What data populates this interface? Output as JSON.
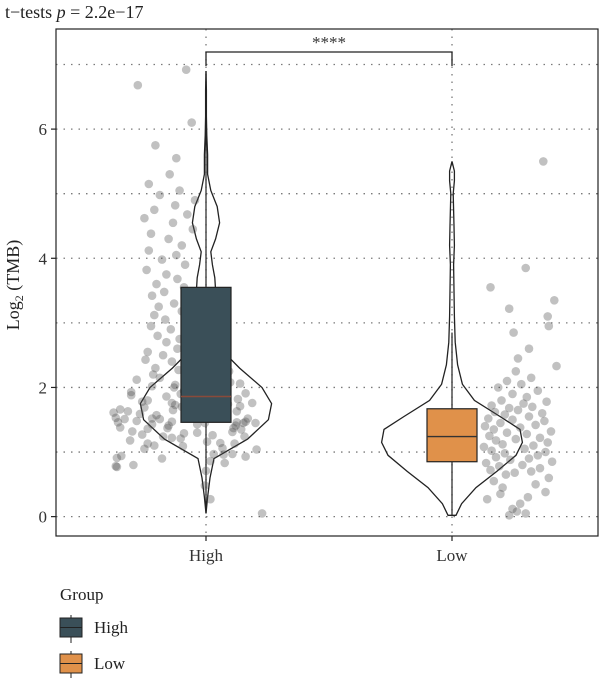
{
  "chart_data": {
    "type": "violin",
    "title_prefix": "t−tests ",
    "title_p_symbol": "p",
    "title_p_value": " = 2.2e−17",
    "ylabel_main": "Log",
    "ylabel_sub": "2",
    "ylabel_rest": " (TMB)",
    "categories": [
      "High",
      "Low"
    ],
    "ylim": [
      -0.3,
      7.55
    ],
    "yticks": [
      0,
      2,
      4,
      6
    ],
    "grid": true,
    "significance": "****",
    "legend": {
      "title": "Group",
      "position": "bottom-left"
    },
    "colors": {
      "High": "#3a4f58",
      "Low": "#e0914a"
    },
    "groups": [
      {
        "name": "High",
        "box": {
          "q1": 1.46,
          "median": 1.86,
          "q3": 3.55,
          "whisker_low": 0.05,
          "whisker_high": 6.9
        },
        "violin_min": 0.05,
        "violin_max": 6.9,
        "density": [
          [
            0.05,
            0.0
          ],
          [
            0.3,
            0.02
          ],
          [
            0.6,
            0.05
          ],
          [
            0.9,
            0.1
          ],
          [
            1.2,
            0.52
          ],
          [
            1.5,
            0.78
          ],
          [
            1.75,
            0.82
          ],
          [
            2.0,
            0.7
          ],
          [
            2.3,
            0.42
          ],
          [
            2.6,
            0.18
          ],
          [
            2.9,
            0.08
          ],
          [
            3.2,
            0.1
          ],
          [
            3.5,
            0.12
          ],
          [
            3.7,
            0.11
          ],
          [
            3.9,
            0.08
          ],
          [
            4.1,
            0.06
          ],
          [
            4.3,
            0.12
          ],
          [
            4.55,
            0.17
          ],
          [
            4.8,
            0.14
          ],
          [
            5.05,
            0.06
          ],
          [
            5.3,
            0.02
          ],
          [
            5.6,
            0.02
          ],
          [
            5.9,
            0.01
          ],
          [
            6.2,
            0.005
          ],
          [
            6.6,
            0.005
          ],
          [
            6.9,
            0.0
          ]
        ],
        "points": [
          [
            0.05,
            1.91
          ],
          [
            0.27,
            1.44
          ],
          [
            0.48,
            1.39
          ],
          [
            0.71,
            1.4
          ],
          [
            0.77,
            0.59
          ],
          [
            0.78,
            0.58
          ],
          [
            0.8,
            0.74
          ],
          [
            0.83,
            1.57
          ],
          [
            0.86,
            1.44
          ],
          [
            0.9,
            1.0
          ],
          [
            0.91,
            0.59
          ],
          [
            0.93,
            1.76
          ],
          [
            0.94,
            0.63
          ],
          [
            0.96,
            1.56
          ],
          [
            0.97,
            1.47
          ],
          [
            0.97,
            1.64
          ],
          [
            1.04,
            1.86
          ],
          [
            1.05,
            0.84
          ],
          [
            1.06,
            1.55
          ],
          [
            1.09,
            1.19
          ],
          [
            1.1,
            0.93
          ],
          [
            1.13,
            0.87
          ],
          [
            1.13,
            1.66
          ],
          [
            1.14,
            1.53
          ],
          [
            1.16,
            1.41
          ],
          [
            1.18,
            0.71
          ],
          [
            1.21,
            1.17
          ],
          [
            1.22,
            1.09
          ],
          [
            1.24,
            1.01
          ],
          [
            1.24,
            1.75
          ],
          [
            1.26,
            1.46
          ],
          [
            1.27,
            0.82
          ],
          [
            1.29,
            1.2
          ],
          [
            1.3,
            1.32
          ],
          [
            1.31,
            1.64
          ],
          [
            1.32,
            0.73
          ],
          [
            1.35,
            1.72
          ],
          [
            1.36,
            0.87
          ],
          [
            1.37,
            1.05
          ],
          [
            1.37,
            1.65
          ],
          [
            1.38,
            0.62
          ],
          [
            1.41,
            1.06
          ],
          [
            1.41,
            1.67
          ],
          [
            1.43,
            1.32
          ],
          [
            1.43,
            0.91
          ],
          [
            1.45,
            1.39
          ],
          [
            1.45,
            1.85
          ],
          [
            1.45,
            1.74
          ],
          [
            1.46,
            0.6
          ],
          [
            1.46,
            1.68
          ],
          [
            1.47,
            1.09
          ],
          [
            1.47,
            1.76
          ],
          [
            1.48,
            0.77
          ],
          [
            1.51,
            0.98
          ],
          [
            1.51,
            0.66
          ],
          [
            1.52,
            0.91
          ],
          [
            1.52,
            1.78
          ],
          [
            1.53,
            1.22
          ],
          [
            1.53,
            0.58
          ],
          [
            1.53,
            1.28
          ],
          [
            1.54,
            1.59
          ],
          [
            1.55,
            1.31
          ],
          [
            1.56,
            1.58
          ],
          [
            1.57,
            0.95
          ],
          [
            1.59,
            0.8
          ],
          [
            1.59,
            1.56
          ],
          [
            1.61,
            1.45
          ],
          [
            1.61,
            0.56
          ],
          [
            1.62,
            1.24
          ],
          [
            1.63,
            0.69
          ],
          [
            1.63,
            1.68
          ],
          [
            1.65,
            1.1
          ],
          [
            1.66,
            0.62
          ],
          [
            1.67,
            1.43
          ],
          [
            1.69,
            0.84
          ],
          [
            1.7,
            1.52
          ],
          [
            1.7,
            1.18
          ],
          [
            1.71,
            1.71
          ],
          [
            1.73,
            1.12
          ],
          [
            1.74,
            1.6
          ],
          [
            1.76,
            1.82
          ],
          [
            1.76,
            1.09
          ],
          [
            1.78,
            0.82
          ],
          [
            1.79,
            1.27
          ],
          [
            1.8,
            0.87
          ],
          [
            1.82,
            1.69
          ],
          [
            1.84,
            1.44
          ],
          [
            1.86,
            1.04
          ],
          [
            1.87,
            1.59
          ],
          [
            1.88,
            0.72
          ],
          [
            1.9,
            1.17
          ],
          [
            1.91,
            1.76
          ],
          [
            1.93,
            0.72
          ],
          [
            1.95,
            1.2
          ],
          [
            1.96,
            1.35
          ],
          [
            1.98,
            1.55
          ],
          [
            2.0,
            1.11
          ],
          [
            2.02,
            0.91
          ],
          [
            2.04,
            1.12
          ],
          [
            2.06,
            1.71
          ],
          [
            2.08,
            1.62
          ],
          [
            2.1,
            1.34
          ],
          [
            2.12,
            0.77
          ],
          [
            2.15,
            0.98
          ],
          [
            2.18,
            1.48
          ],
          [
            2.2,
            0.92
          ],
          [
            2.22,
            1.24
          ],
          [
            2.25,
            1.61
          ],
          [
            2.27,
            1.15
          ],
          [
            2.3,
            0.94
          ],
          [
            2.33,
            1.3
          ],
          [
            2.36,
            1.42
          ],
          [
            2.4,
            1.09
          ],
          [
            2.43,
            0.85
          ],
          [
            2.46,
            1.21
          ],
          [
            2.5,
            1.01
          ],
          [
            2.55,
            0.87
          ],
          [
            2.6,
            1.14
          ],
          [
            2.64,
            1.33
          ],
          [
            2.7,
            1.04
          ],
          [
            2.75,
            1.16
          ],
          [
            2.8,
            0.96
          ],
          [
            2.85,
            1.27
          ],
          [
            2.9,
            1.08
          ],
          [
            2.95,
            0.9
          ],
          [
            3.0,
            1.22
          ],
          [
            3.05,
            1.03
          ],
          [
            3.12,
            0.93
          ],
          [
            3.18,
            1.18
          ],
          [
            3.25,
            0.97
          ],
          [
            3.3,
            1.11
          ],
          [
            3.35,
            1.24
          ],
          [
            3.42,
            0.91
          ],
          [
            3.48,
            1.02
          ],
          [
            3.55,
            1.2
          ],
          [
            3.6,
            0.95
          ],
          [
            3.68,
            1.14
          ],
          [
            3.75,
            1.04
          ],
          [
            3.82,
            0.86
          ],
          [
            3.9,
            1.21
          ],
          [
            3.98,
            1.0
          ],
          [
            4.05,
            1.13
          ],
          [
            4.12,
            0.88
          ],
          [
            4.2,
            1.18
          ],
          [
            4.3,
            1.06
          ],
          [
            4.38,
            0.9
          ],
          [
            4.45,
            1.28
          ],
          [
            4.55,
            1.1
          ],
          [
            4.62,
            0.84
          ],
          [
            4.68,
            1.23
          ],
          [
            4.75,
            0.93
          ],
          [
            4.82,
            1.12
          ],
          [
            4.9,
            1.3
          ],
          [
            4.98,
            0.98
          ],
          [
            5.05,
            1.16
          ],
          [
            5.15,
            0.88
          ],
          [
            5.3,
            1.07
          ],
          [
            5.55,
            1.13
          ],
          [
            5.75,
            0.94
          ],
          [
            6.1,
            1.27
          ],
          [
            6.68,
            0.78
          ],
          [
            6.92,
            1.22
          ]
        ]
      },
      {
        "name": "Low",
        "box": {
          "q1": 0.85,
          "median": 1.24,
          "q3": 1.67,
          "whisker_low": 0.02,
          "whisker_high": 2.85
        },
        "violin_min": 0.02,
        "violin_max": 5.5,
        "density": [
          [
            0.02,
            0.05
          ],
          [
            0.2,
            0.12
          ],
          [
            0.45,
            0.3
          ],
          [
            0.7,
            0.56
          ],
          [
            0.95,
            0.8
          ],
          [
            1.15,
            0.88
          ],
          [
            1.35,
            0.85
          ],
          [
            1.55,
            0.6
          ],
          [
            1.8,
            0.28
          ],
          [
            2.05,
            0.13
          ],
          [
            2.35,
            0.07
          ],
          [
            2.7,
            0.04
          ],
          [
            3.1,
            0.03
          ],
          [
            3.5,
            0.025
          ],
          [
            3.9,
            0.02
          ],
          [
            4.2,
            0.03
          ],
          [
            4.5,
            0.025
          ],
          [
            4.75,
            0.02
          ],
          [
            5.0,
            0.015
          ],
          [
            5.2,
            0.03
          ],
          [
            5.35,
            0.03
          ],
          [
            5.5,
            0.0
          ]
        ],
        "points": [
          [
            0.02,
            1.92
          ],
          [
            0.05,
            2.07
          ],
          [
            0.08,
            1.99
          ],
          [
            0.12,
            1.95
          ],
          [
            0.2,
            2.02
          ],
          [
            0.27,
            1.72
          ],
          [
            0.3,
            2.09
          ],
          [
            0.35,
            1.84
          ],
          [
            0.38,
            2.25
          ],
          [
            0.45,
            1.86
          ],
          [
            0.5,
            2.16
          ],
          [
            0.55,
            1.78
          ],
          [
            0.6,
            2.28
          ],
          [
            0.65,
            1.89
          ],
          [
            0.68,
            1.97
          ],
          [
            0.7,
            2.12
          ],
          [
            0.72,
            1.75
          ],
          [
            0.75,
            2.2
          ],
          [
            0.78,
            1.83
          ],
          [
            0.8,
            2.04
          ],
          [
            0.83,
            1.71
          ],
          [
            0.85,
            2.31
          ],
          [
            0.88,
            1.93
          ],
          [
            0.9,
            2.1
          ],
          [
            0.92,
            1.8
          ],
          [
            0.95,
            2.18
          ],
          [
            0.98,
            1.88
          ],
          [
            1.0,
            2.25
          ],
          [
            1.02,
            1.76
          ],
          [
            1.05,
            2.06
          ],
          [
            1.08,
            1.69
          ],
          [
            1.1,
            2.14
          ],
          [
            1.12,
            1.86
          ],
          [
            1.15,
            2.27
          ],
          [
            1.18,
            1.8
          ],
          [
            1.2,
            1.98
          ],
          [
            1.22,
            2.2
          ],
          [
            1.25,
            1.74
          ],
          [
            1.28,
            2.08
          ],
          [
            1.3,
            1.9
          ],
          [
            1.32,
            2.3
          ],
          [
            1.35,
            1.78
          ],
          [
            1.38,
            2.02
          ],
          [
            1.4,
            1.7
          ],
          [
            1.42,
            2.16
          ],
          [
            1.45,
            1.84
          ],
          [
            1.48,
            2.24
          ],
          [
            1.5,
            1.95
          ],
          [
            1.52,
            1.73
          ],
          [
            1.55,
            2.1
          ],
          [
            1.58,
            1.88
          ],
          [
            1.6,
            2.22
          ],
          [
            1.62,
            1.79
          ],
          [
            1.65,
            2.0
          ],
          [
            1.68,
            1.92
          ],
          [
            1.7,
            2.13
          ],
          [
            1.72,
            1.76
          ],
          [
            1.75,
            2.05
          ],
          [
            1.78,
            2.26
          ],
          [
            1.8,
            1.85
          ],
          [
            1.85,
            2.08
          ],
          [
            1.9,
            1.95
          ],
          [
            1.95,
            2.18
          ],
          [
            2.0,
            1.82
          ],
          [
            2.05,
            2.03
          ],
          [
            2.1,
            1.9
          ],
          [
            2.15,
            2.12
          ],
          [
            2.25,
            1.98
          ],
          [
            2.33,
            2.35
          ],
          [
            2.45,
            2.0
          ],
          [
            2.6,
            2.1
          ],
          [
            2.85,
            1.96
          ],
          [
            2.95,
            2.28
          ],
          [
            3.1,
            2.27
          ],
          [
            3.22,
            1.92
          ],
          [
            3.35,
            2.33
          ],
          [
            3.55,
            1.75
          ],
          [
            3.85,
            2.07
          ],
          [
            5.5,
            2.23
          ]
        ]
      }
    ]
  }
}
